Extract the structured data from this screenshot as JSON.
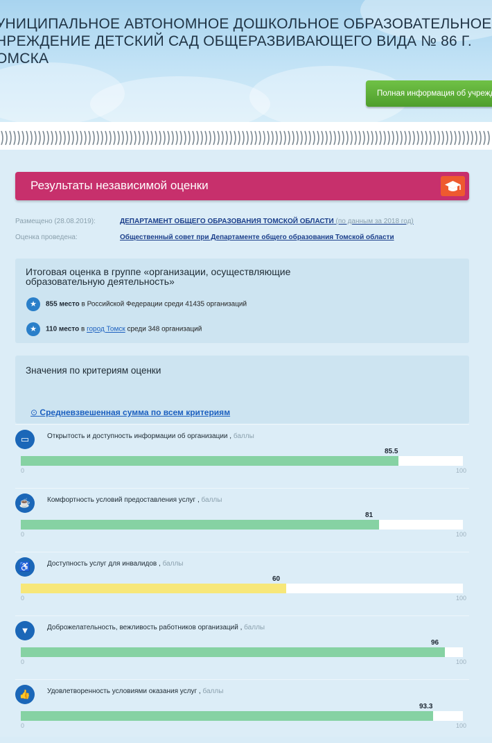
{
  "header": {
    "title": "УНИЦИПАЛЬНОЕ АВТОНОМНОЕ ДОШКОЛЬНОЕ ОБРАЗОВАТЕЛЬНОЕ НРЕЖДЕНИЕ ДЕТСКИЙ САД ОБЩЕРАЗВИВАЮЩЕГО ВИДА № 86 Г. ОМСКА",
    "info_button": "Полная информация об учреждении"
  },
  "results": {
    "title": "Результаты независимой оценки",
    "icon": "graduation-cap-icon",
    "accent_color": "#c7306c",
    "posted_label": "Размещено (28.08.2019):",
    "posted_by": "ДЕПАРТАМЕНТ ОБЩЕГО ОБРАЗОВАНИЯ ТОМСКОЙ ОБЛАСТИ",
    "posted_note": "(по данным за 2018 год)",
    "conducted_label": "Оценка проведена:",
    "conducted_by": "Общественный совет при Департаменте общего образования Томской области"
  },
  "total": {
    "title": "Итоговая оценка в группе «организации, осуществляющие образовательную деятельность»",
    "ranks": [
      {
        "place": "855 место",
        "in": "в",
        "region": "Российской Федерации",
        "among": "среди",
        "count": "41435 организаций"
      },
      {
        "place": "110 место",
        "in": "в",
        "region": "город Томск",
        "among": "среди",
        "count": "348 организаций"
      }
    ]
  },
  "criteria_section": {
    "title": "Значения по критериям оценки",
    "weighted_link": "Средневзвешенная сумма по всем критериям"
  },
  "criteria": [
    {
      "label": "Открытость и доступность информации об организации ,",
      "unit": "баллы",
      "value": 85.5,
      "display": "85.5",
      "min": "0",
      "max": "100",
      "color": "#86d2a3",
      "icon": "inbox-icon",
      "glyph": "▭"
    },
    {
      "label": "Комфортность условий предоставления услуг ,",
      "unit": "баллы",
      "value": 81,
      "display": "81",
      "min": "0",
      "max": "100",
      "color": "#86d2a3",
      "icon": "cup-icon",
      "glyph": "☕"
    },
    {
      "label": "Доступность услуг для инвалидов ,",
      "unit": "баллы",
      "value": 60,
      "display": "60",
      "min": "0",
      "max": "100",
      "color": "#f7e779",
      "icon": "wheelchair-icon",
      "glyph": "♿"
    },
    {
      "label": "Доброжелательность, вежливость работников организаций ,",
      "unit": "баллы",
      "value": 96,
      "display": "96",
      "min": "0",
      "max": "100",
      "color": "#86d2a3",
      "icon": "tie-icon",
      "glyph": "▼"
    },
    {
      "label": "Удовлетворенность условиями оказания услуг ,",
      "unit": "баллы",
      "value": 93.3,
      "display": "93.3",
      "min": "0",
      "max": "100",
      "color": "#86d2a3",
      "icon": "thumbs-up-icon",
      "glyph": "👍"
    }
  ]
}
